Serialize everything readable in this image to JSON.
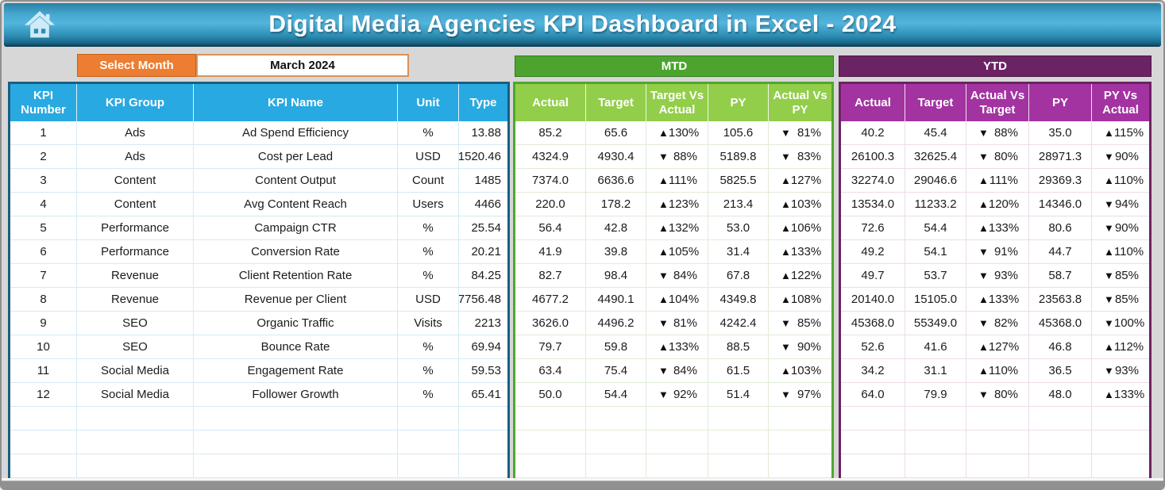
{
  "header": {
    "title": "Digital Media Agencies KPI Dashboard in Excel - 2024"
  },
  "controls": {
    "select_month_label": "Select Month",
    "selected_month": "March 2024"
  },
  "icons": {
    "up": "▲",
    "down": "▼"
  },
  "kpi_table": {
    "columns": [
      "KPI Number",
      "KPI Group",
      "KPI Name",
      "Unit",
      "Type"
    ],
    "rows": [
      {
        "number": "1",
        "group": "Ads",
        "name": "Ad Spend Efficiency",
        "unit": "%",
        "type": "13.88"
      },
      {
        "number": "2",
        "group": "Ads",
        "name": "Cost per Lead",
        "unit": "USD",
        "type": "1520.46"
      },
      {
        "number": "3",
        "group": "Content",
        "name": "Content Output",
        "unit": "Count",
        "type": "1485"
      },
      {
        "number": "4",
        "group": "Content",
        "name": "Avg Content Reach",
        "unit": "Users",
        "type": "4466"
      },
      {
        "number": "5",
        "group": "Performance",
        "name": "Campaign CTR",
        "unit": "%",
        "type": "25.54"
      },
      {
        "number": "6",
        "group": "Performance",
        "name": "Conversion Rate",
        "unit": "%",
        "type": "20.21"
      },
      {
        "number": "7",
        "group": "Revenue",
        "name": "Client Retention Rate",
        "unit": "%",
        "type": "84.25"
      },
      {
        "number": "8",
        "group": "Revenue",
        "name": "Revenue per Client",
        "unit": "USD",
        "type": "7756.48"
      },
      {
        "number": "9",
        "group": "SEO",
        "name": "Organic Traffic",
        "unit": "Visits",
        "type": "2213"
      },
      {
        "number": "10",
        "group": "SEO",
        "name": "Bounce Rate",
        "unit": "%",
        "type": "69.94"
      },
      {
        "number": "11",
        "group": "Social Media",
        "name": "Engagement Rate",
        "unit": "%",
        "type": "59.53"
      },
      {
        "number": "12",
        "group": "Social Media",
        "name": "Follower Growth",
        "unit": "%",
        "type": "65.41"
      }
    ],
    "empty_rows": 3
  },
  "mtd": {
    "title": "MTD",
    "columns": [
      "Actual",
      "Target",
      "Target Vs Actual",
      "PY",
      "Actual Vs PY"
    ],
    "rows": [
      {
        "actual": "85.2",
        "target": "65.6",
        "target_vs_actual_dir": "up",
        "target_vs_actual": "130%",
        "py": "105.6",
        "actual_vs_py_dir": "down",
        "actual_vs_py": "81%"
      },
      {
        "actual": "4324.9",
        "target": "4930.4",
        "target_vs_actual_dir": "down",
        "target_vs_actual": "88%",
        "py": "5189.8",
        "actual_vs_py_dir": "down",
        "actual_vs_py": "83%"
      },
      {
        "actual": "7374.0",
        "target": "6636.6",
        "target_vs_actual_dir": "up",
        "target_vs_actual": "111%",
        "py": "5825.5",
        "actual_vs_py_dir": "up",
        "actual_vs_py": "127%"
      },
      {
        "actual": "220.0",
        "target": "178.2",
        "target_vs_actual_dir": "up",
        "target_vs_actual": "123%",
        "py": "213.4",
        "actual_vs_py_dir": "up",
        "actual_vs_py": "103%"
      },
      {
        "actual": "56.4",
        "target": "42.8",
        "target_vs_actual_dir": "up",
        "target_vs_actual": "132%",
        "py": "53.0",
        "actual_vs_py_dir": "up",
        "actual_vs_py": "106%"
      },
      {
        "actual": "41.9",
        "target": "39.8",
        "target_vs_actual_dir": "up",
        "target_vs_actual": "105%",
        "py": "31.4",
        "actual_vs_py_dir": "up",
        "actual_vs_py": "133%"
      },
      {
        "actual": "82.7",
        "target": "98.4",
        "target_vs_actual_dir": "down",
        "target_vs_actual": "84%",
        "py": "67.8",
        "actual_vs_py_dir": "up",
        "actual_vs_py": "122%"
      },
      {
        "actual": "4677.2",
        "target": "4490.1",
        "target_vs_actual_dir": "up",
        "target_vs_actual": "104%",
        "py": "4349.8",
        "actual_vs_py_dir": "up",
        "actual_vs_py": "108%"
      },
      {
        "actual": "3626.0",
        "target": "4496.2",
        "target_vs_actual_dir": "down",
        "target_vs_actual": "81%",
        "py": "4242.4",
        "actual_vs_py_dir": "down",
        "actual_vs_py": "85%"
      },
      {
        "actual": "79.7",
        "target": "59.8",
        "target_vs_actual_dir": "up",
        "target_vs_actual": "133%",
        "py": "88.5",
        "actual_vs_py_dir": "down",
        "actual_vs_py": "90%"
      },
      {
        "actual": "63.4",
        "target": "75.4",
        "target_vs_actual_dir": "down",
        "target_vs_actual": "84%",
        "py": "61.5",
        "actual_vs_py_dir": "up",
        "actual_vs_py": "103%"
      },
      {
        "actual": "50.0",
        "target": "54.4",
        "target_vs_actual_dir": "down",
        "target_vs_actual": "92%",
        "py": "51.4",
        "actual_vs_py_dir": "down",
        "actual_vs_py": "97%"
      }
    ],
    "empty_rows": 3
  },
  "ytd": {
    "title": "YTD",
    "columns": [
      "Actual",
      "Target",
      "Actual Vs Target",
      "PY",
      "PY Vs Actual"
    ],
    "rows": [
      {
        "actual": "40.2",
        "target": "45.4",
        "actual_vs_target_dir": "down",
        "actual_vs_target": "88%",
        "py": "35.0",
        "py_vs_actual_dir": "up",
        "py_vs_actual": "115%"
      },
      {
        "actual": "26100.3",
        "target": "32625.4",
        "actual_vs_target_dir": "down",
        "actual_vs_target": "80%",
        "py": "28971.3",
        "py_vs_actual_dir": "down",
        "py_vs_actual": "90%"
      },
      {
        "actual": "32274.0",
        "target": "29046.6",
        "actual_vs_target_dir": "up",
        "actual_vs_target": "111%",
        "py": "29369.3",
        "py_vs_actual_dir": "up",
        "py_vs_actual": "110%"
      },
      {
        "actual": "13534.0",
        "target": "11233.2",
        "actual_vs_target_dir": "up",
        "actual_vs_target": "120%",
        "py": "14346.0",
        "py_vs_actual_dir": "down",
        "py_vs_actual": "94%"
      },
      {
        "actual": "72.6",
        "target": "54.4",
        "actual_vs_target_dir": "up",
        "actual_vs_target": "133%",
        "py": "80.6",
        "py_vs_actual_dir": "down",
        "py_vs_actual": "90%"
      },
      {
        "actual": "49.2",
        "target": "54.1",
        "actual_vs_target_dir": "down",
        "actual_vs_target": "91%",
        "py": "44.7",
        "py_vs_actual_dir": "up",
        "py_vs_actual": "110%"
      },
      {
        "actual": "49.7",
        "target": "53.7",
        "actual_vs_target_dir": "down",
        "actual_vs_target": "93%",
        "py": "58.7",
        "py_vs_actual_dir": "down",
        "py_vs_actual": "85%"
      },
      {
        "actual": "20140.0",
        "target": "15105.0",
        "actual_vs_target_dir": "up",
        "actual_vs_target": "133%",
        "py": "23563.8",
        "py_vs_actual_dir": "down",
        "py_vs_actual": "85%"
      },
      {
        "actual": "45368.0",
        "target": "55349.0",
        "actual_vs_target_dir": "down",
        "actual_vs_target": "82%",
        "py": "45368.0",
        "py_vs_actual_dir": "down",
        "py_vs_actual": "100%"
      },
      {
        "actual": "52.6",
        "target": "41.6",
        "actual_vs_target_dir": "up",
        "actual_vs_target": "127%",
        "py": "46.8",
        "py_vs_actual_dir": "up",
        "py_vs_actual": "112%"
      },
      {
        "actual": "34.2",
        "target": "31.1",
        "actual_vs_target_dir": "up",
        "actual_vs_target": "110%",
        "py": "36.5",
        "py_vs_actual_dir": "down",
        "py_vs_actual": "93%"
      },
      {
        "actual": "64.0",
        "target": "79.9",
        "actual_vs_target_dir": "down",
        "actual_vs_target": "80%",
        "py": "48.0",
        "py_vs_actual_dir": "up",
        "py_vs_actual": "133%"
      }
    ],
    "empty_rows": 3
  },
  "colors": {
    "page_background": "#d7d7d7",
    "kpi_header_blue": "#29a9e1",
    "kpi_border_blue": "#1a5f80",
    "select_month_orange": "#ed7d31",
    "mtd_bar_green": "#4ca42f",
    "mtd_header_green": "#92ce4a",
    "mtd_border_green": "#4ea72e",
    "ytd_bar_purple": "#6b2363",
    "ytd_header_purple": "#a333a1",
    "arrow_black": "#111111"
  }
}
